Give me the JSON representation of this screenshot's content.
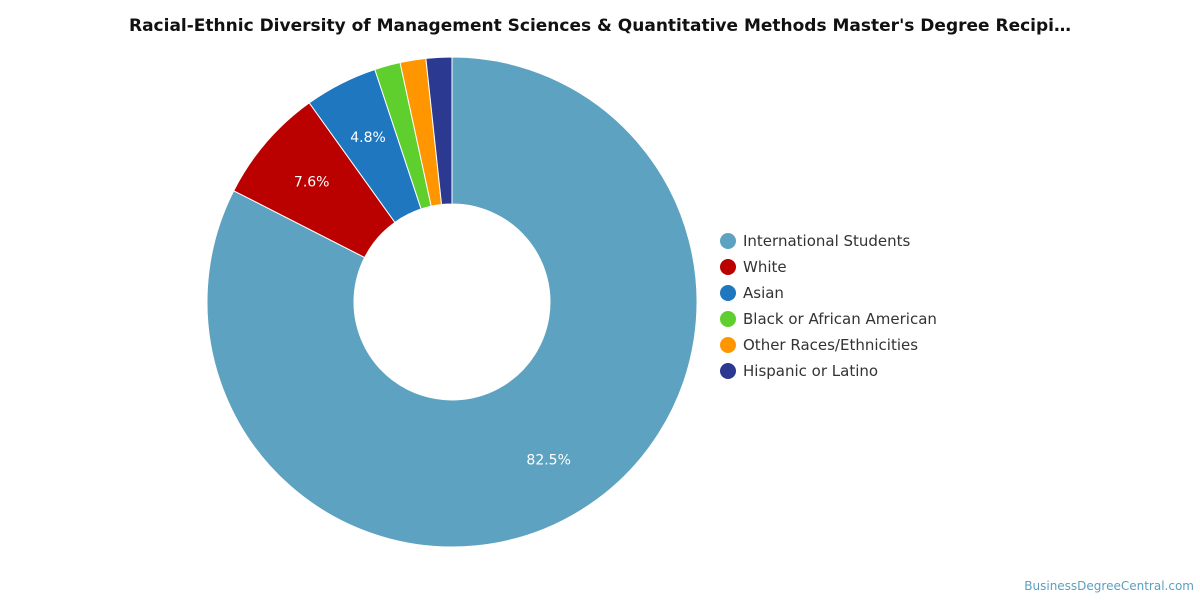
{
  "chart_data": {
    "type": "pie",
    "title": "Racial-Ethnic Diversity of Management Sciences & Quantitative Methods Master's Degree Recipi…",
    "legend_position": "right",
    "donut": true,
    "slices": [
      {
        "name": "International Students",
        "value": 82.5,
        "label": "82.5%",
        "color": "#5da2c0"
      },
      {
        "name": "White",
        "value": 7.6,
        "label": "7.6%",
        "color": "#bb0000"
      },
      {
        "name": "Asian",
        "value": 4.8,
        "label": "4.8%",
        "color": "#1f77c0"
      },
      {
        "name": "Black or African American",
        "value": 1.7,
        "label": "",
        "color": "#5ecf2d"
      },
      {
        "name": "Other Races/Ethnicities",
        "value": 1.7,
        "label": "",
        "color": "#ff9600"
      },
      {
        "name": "Hispanic or Latino",
        "value": 1.7,
        "label": "",
        "color": "#2b3990"
      }
    ]
  },
  "footer": {
    "credit": "BusinessDegreeCentral.com"
  }
}
